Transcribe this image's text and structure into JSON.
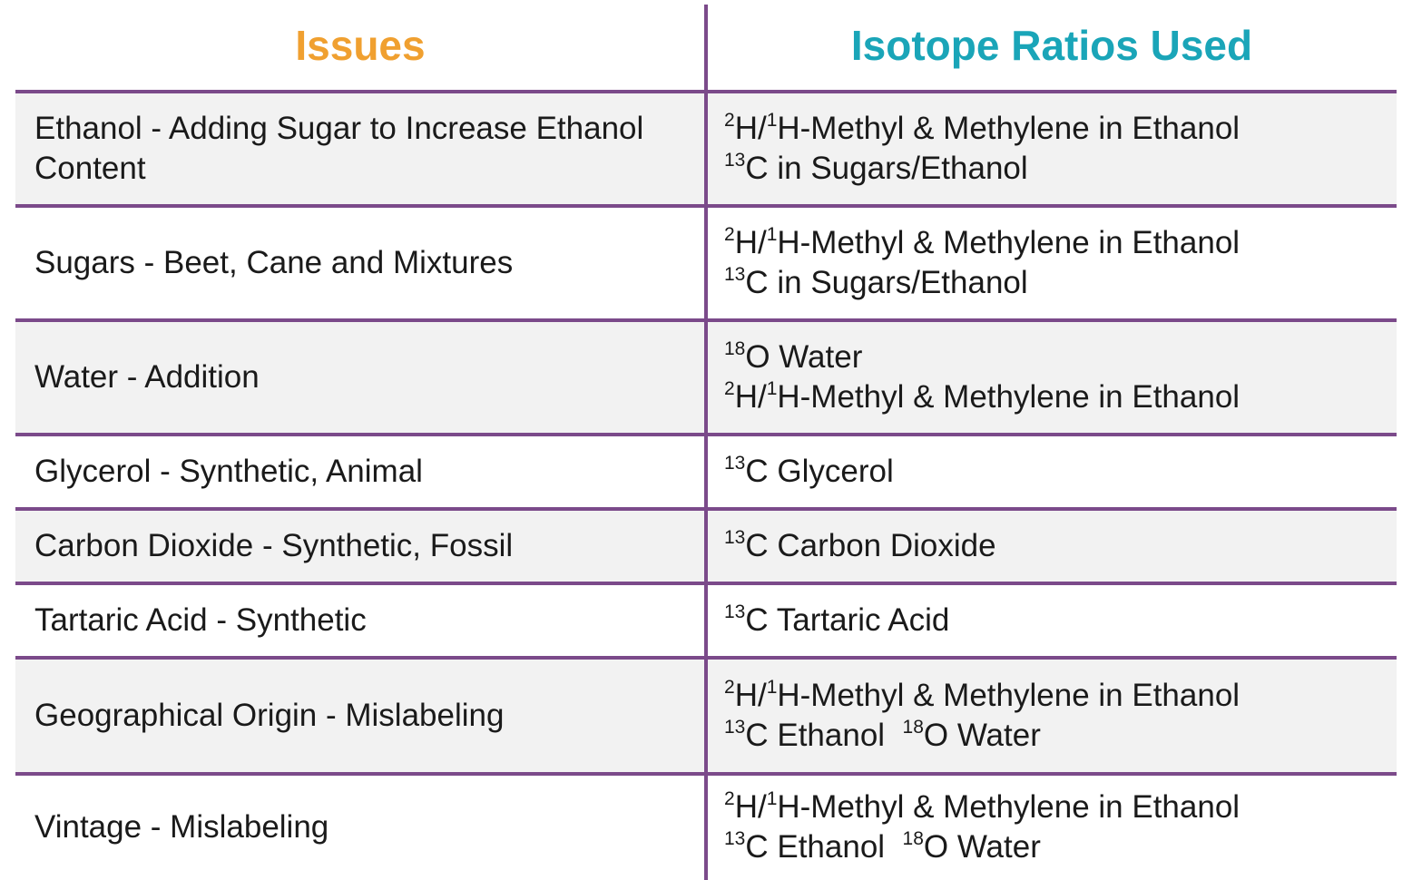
{
  "header": {
    "issues_label": "Issues",
    "ratios_label": "Isotope Ratios Used",
    "issues_color": "#f0a030",
    "ratios_color": "#1aa5b8",
    "rule_color": "#7b4a8a"
  },
  "rows": [
    {
      "issue": "Ethanol - Adding Sugar to Increase Ethanol Content",
      "ratios": [
        [
          {
            "sup": "2",
            "text": "H/"
          },
          {
            "sup": "1",
            "text": "H-Methyl & Methylene in Ethanol"
          }
        ],
        [
          {
            "sup": "13",
            "text": "C in Sugars/Ethanol"
          }
        ]
      ]
    },
    {
      "issue": "Sugars - Beet, Cane and Mixtures",
      "ratios": [
        [
          {
            "sup": "2",
            "text": "H/"
          },
          {
            "sup": "1",
            "text": "H-Methyl & Methylene in Ethanol"
          }
        ],
        [
          {
            "sup": "13",
            "text": "C in Sugars/Ethanol"
          }
        ]
      ]
    },
    {
      "issue": "Water - Addition",
      "ratios": [
        [
          {
            "sup": "18",
            "text": "O Water"
          }
        ],
        [
          {
            "sup": "2",
            "text": "H/"
          },
          {
            "sup": "1",
            "text": "H-Methyl & Methylene in Ethanol"
          }
        ]
      ]
    },
    {
      "issue": "Glycerol - Synthetic, Animal",
      "ratios": [
        [
          {
            "sup": "13",
            "text": "C Glycerol"
          }
        ]
      ]
    },
    {
      "issue": "Carbon Dioxide - Synthetic, Fossil",
      "ratios": [
        [
          {
            "sup": "13",
            "text": "C Carbon Dioxide"
          }
        ]
      ]
    },
    {
      "issue": "Tartaric Acid - Synthetic",
      "ratios": [
        [
          {
            "sup": "13",
            "text": "C Tartaric Acid"
          }
        ]
      ]
    },
    {
      "issue": "Geographical Origin - Mislabeling",
      "ratios": [
        [
          {
            "sup": "2",
            "text": "H/"
          },
          {
            "sup": "1",
            "text": "H-Methyl & Methylene in Ethanol"
          }
        ],
        [
          {
            "sup": "13",
            "text": "C Ethanol  "
          },
          {
            "sup": "18",
            "text": "O Water"
          }
        ]
      ]
    },
    {
      "issue": "Vintage - Mislabeling",
      "ratios": [
        [
          {
            "sup": "2",
            "text": "H/"
          },
          {
            "sup": "1",
            "text": "H-Methyl & Methylene in Ethanol"
          }
        ],
        [
          {
            "sup": "13",
            "text": "C Ethanol  "
          },
          {
            "sup": "18",
            "text": "O Water"
          }
        ]
      ]
    }
  ]
}
